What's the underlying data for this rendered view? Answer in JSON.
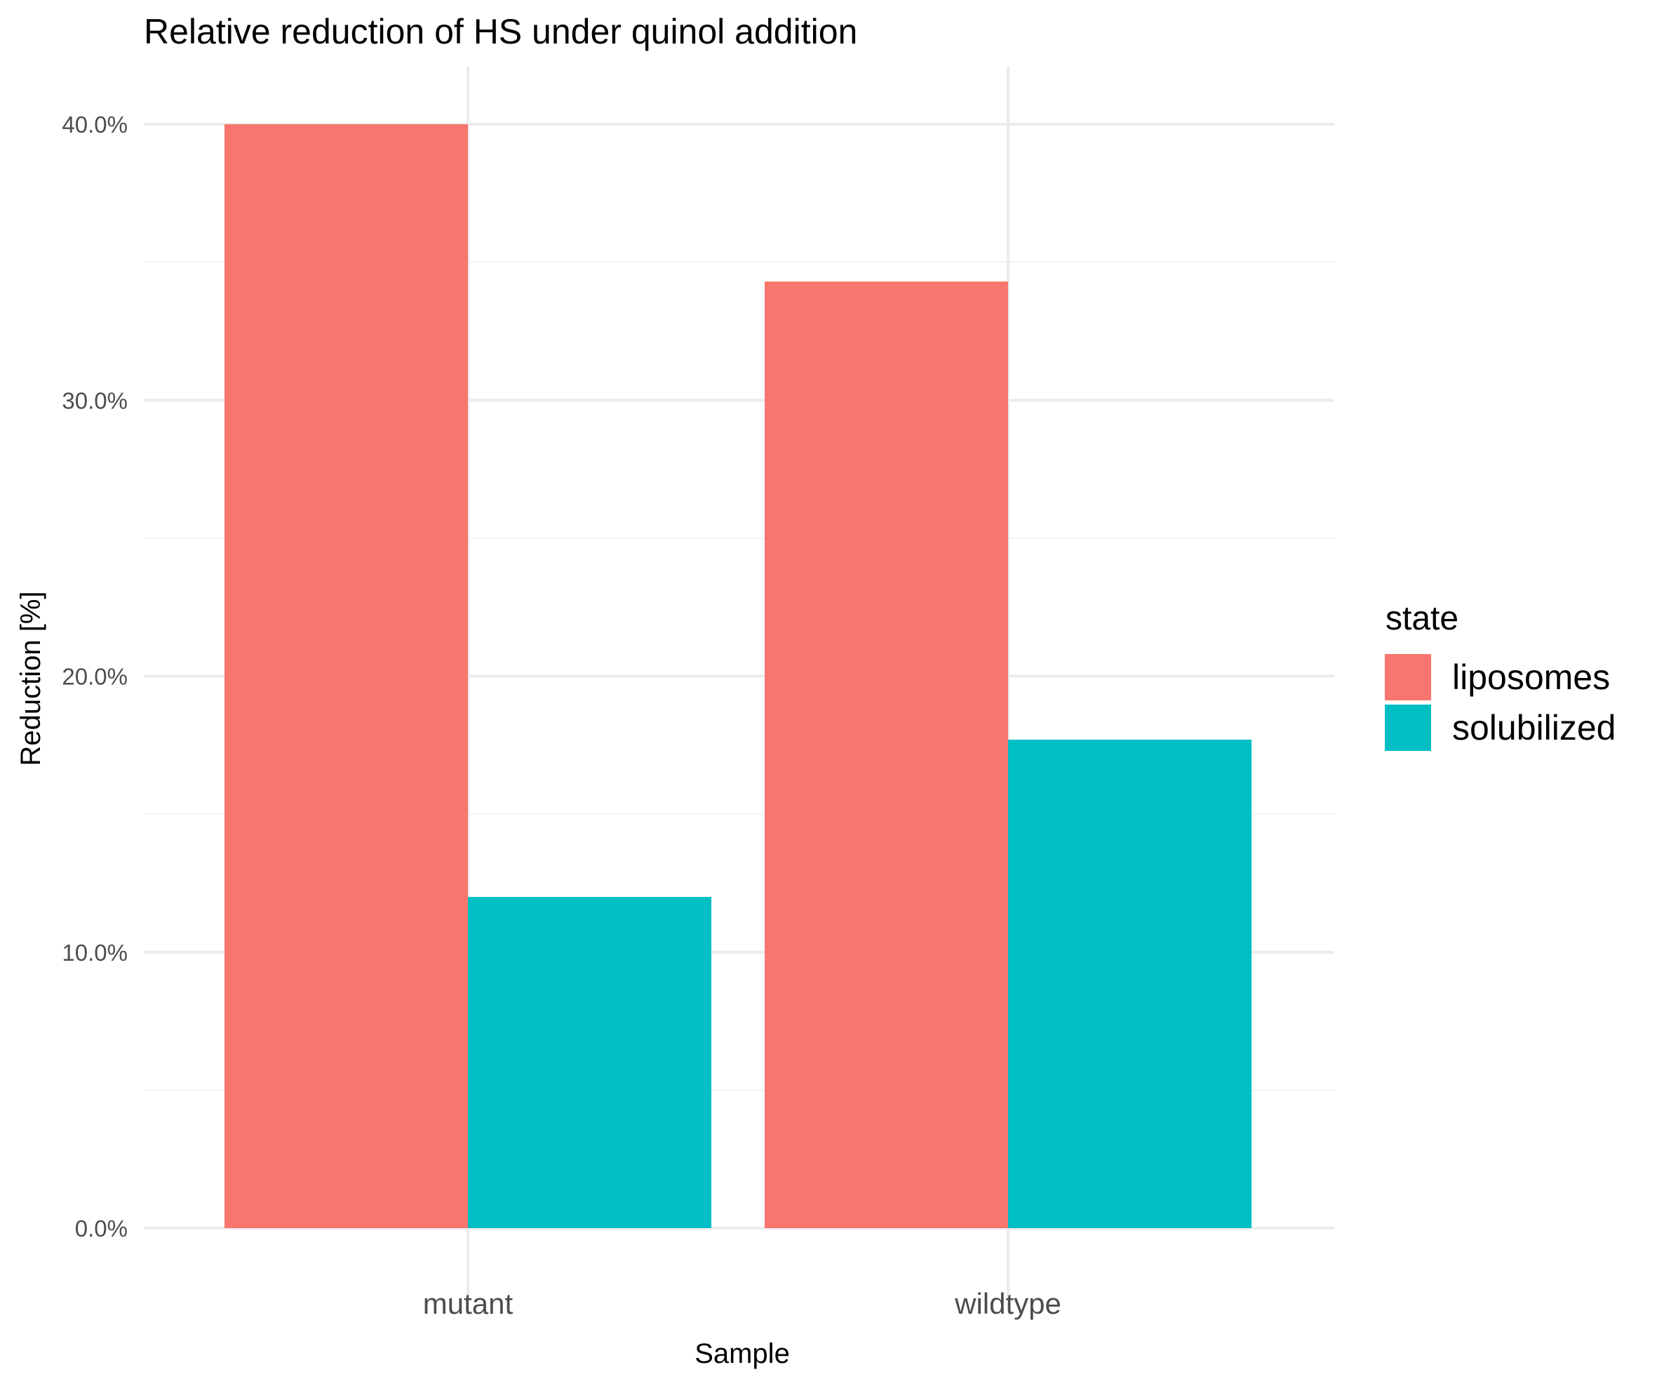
{
  "chart_data": {
    "type": "bar",
    "title": "Relative reduction of HS under quinol addition",
    "xlabel": "Sample",
    "ylabel": "Reduction [%]",
    "categories": [
      "mutant",
      "wildtype"
    ],
    "series": [
      {
        "name": "liposomes",
        "color": "#F8766D",
        "values": [
          0.4,
          0.343
        ]
      },
      {
        "name": "solubilized",
        "color": "#00BFC4",
        "values": [
          0.12,
          0.177
        ]
      }
    ],
    "ylim": [
      0,
      0.4
    ],
    "y_ticks": [
      0.0,
      0.1,
      0.2,
      0.3,
      0.4
    ],
    "y_tick_labels": [
      "0.0%",
      "10.0%",
      "20.0%",
      "30.0%",
      "40.0%"
    ],
    "legend": {
      "title": "state",
      "placement": "right"
    },
    "grid": true
  }
}
